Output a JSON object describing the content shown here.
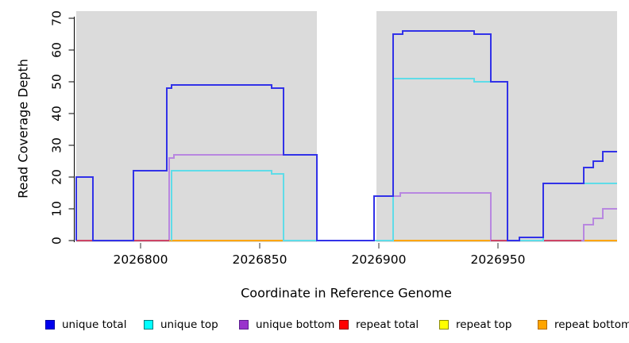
{
  "chart_data": {
    "type": "line",
    "step_mode": "hv",
    "title": "",
    "xlabel": "Coordinate in Reference Genome",
    "ylabel": "Read Coverage Depth",
    "x_range": [
      2026773,
      2027000
    ],
    "y_range": [
      0,
      72
    ],
    "x_ticks": [
      2026800,
      2026850,
      2026900,
      2026950
    ],
    "y_ticks": [
      0,
      10,
      20,
      30,
      40,
      50,
      60,
      70
    ],
    "grid": false,
    "legend_position": "bottom",
    "panel_color": "#DBDBDB",
    "background_panels": [
      {
        "from": 2026773,
        "to": 2026874
      },
      {
        "from": 2026899,
        "to": 2027000
      }
    ],
    "gap_region": {
      "from": 2026874,
      "to": 2026899
    },
    "draw_order": [
      4,
      5,
      2,
      3,
      1,
      0
    ],
    "series": [
      {
        "name": "unique total",
        "color": "#3232E8",
        "legend_fill": "#0000EE",
        "legend_border": "#0000A0",
        "points": [
          [
            2026773,
            20
          ],
          [
            2026780,
            0
          ],
          [
            2026797,
            22
          ],
          [
            2026811,
            48
          ],
          [
            2026813,
            49
          ],
          [
            2026855,
            48
          ],
          [
            2026860,
            27
          ],
          [
            2026874,
            0
          ],
          [
            2026898,
            14
          ],
          [
            2026906,
            65
          ],
          [
            2026910,
            66
          ],
          [
            2026940,
            65
          ],
          [
            2026947,
            50
          ],
          [
            2026954,
            0
          ],
          [
            2026959,
            1
          ],
          [
            2026969,
            18
          ],
          [
            2026986,
            23
          ],
          [
            2026990,
            25
          ],
          [
            2026994,
            28
          ],
          [
            2027000,
            28
          ]
        ]
      },
      {
        "name": "unique top",
        "color": "#5FDCE8",
        "legend_fill": "#00FFFF",
        "legend_border": "#007A7A",
        "points": [
          [
            2026813,
            22
          ],
          [
            2026855,
            21
          ],
          [
            2026860,
            0
          ],
          [
            2026906,
            51
          ],
          [
            2026940,
            50
          ],
          [
            2026954,
            0
          ],
          [
            2026969,
            18
          ],
          [
            2027000,
            18
          ]
        ]
      },
      {
        "name": "unique bottom",
        "color": "#B887E0",
        "legend_fill": "#9932CC",
        "legend_border": "#5B1E8F",
        "points": [
          [
            2026812,
            26
          ],
          [
            2026814,
            27
          ],
          [
            2026874,
            0
          ],
          [
            2026906,
            14
          ],
          [
            2026909,
            15
          ],
          [
            2026947,
            0
          ],
          [
            2026986,
            5
          ],
          [
            2026990,
            7
          ],
          [
            2026994,
            10
          ],
          [
            2027000,
            10
          ]
        ]
      },
      {
        "name": "repeat total",
        "color": "#CC4466",
        "legend_fill": "#FF0000",
        "legend_border": "#8B0000",
        "points": [
          [
            2026773,
            0
          ],
          [
            2026812,
            null
          ],
          [
            2026947,
            0
          ],
          [
            2026985,
            null
          ]
        ]
      },
      {
        "name": "repeat top",
        "color": "#FFE000",
        "legend_fill": "#FFFF00",
        "legend_border": "#8B8B00",
        "points": [
          [
            2026812,
            0
          ],
          [
            2027000,
            0
          ]
        ]
      },
      {
        "name": "repeat bottom",
        "color": "#FFA500",
        "legend_fill": "#FFA500",
        "legend_border": "#B36B00",
        "points": [
          [
            2026812,
            0
          ],
          [
            2027000,
            0
          ]
        ]
      }
    ]
  }
}
